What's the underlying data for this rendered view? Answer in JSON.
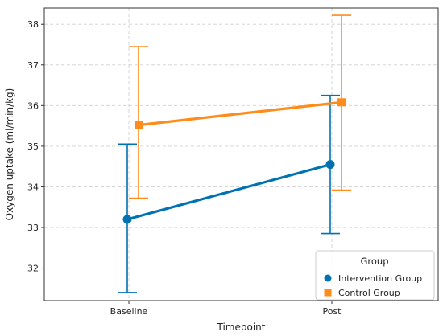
{
  "chart_data": {
    "type": "line",
    "xlabel": "Timepoint",
    "ylabel": "Oxygen uptake (ml/min/kg)",
    "categories": [
      "Baseline",
      "Post"
    ],
    "ylim": [
      31.2,
      38.4
    ],
    "yticks": [
      32,
      33,
      34,
      35,
      36,
      37,
      38
    ],
    "grid": true,
    "grid_style": "dashed",
    "legend": {
      "title": "Group",
      "placement": "lower-right"
    },
    "series": [
      {
        "name": "Intervention Group",
        "color": "#0072B2",
        "marker": "circle",
        "values": [
          33.2,
          34.55
        ],
        "error_low": [
          31.4,
          32.85
        ],
        "error_high": [
          35.05,
          36.25
        ]
      },
      {
        "name": "Control Group",
        "color": "#FF8C1A",
        "marker": "square",
        "values": [
          35.52,
          36.08
        ],
        "error_low": [
          33.72,
          33.92
        ],
        "error_high": [
          37.45,
          38.22
        ]
      }
    ]
  }
}
